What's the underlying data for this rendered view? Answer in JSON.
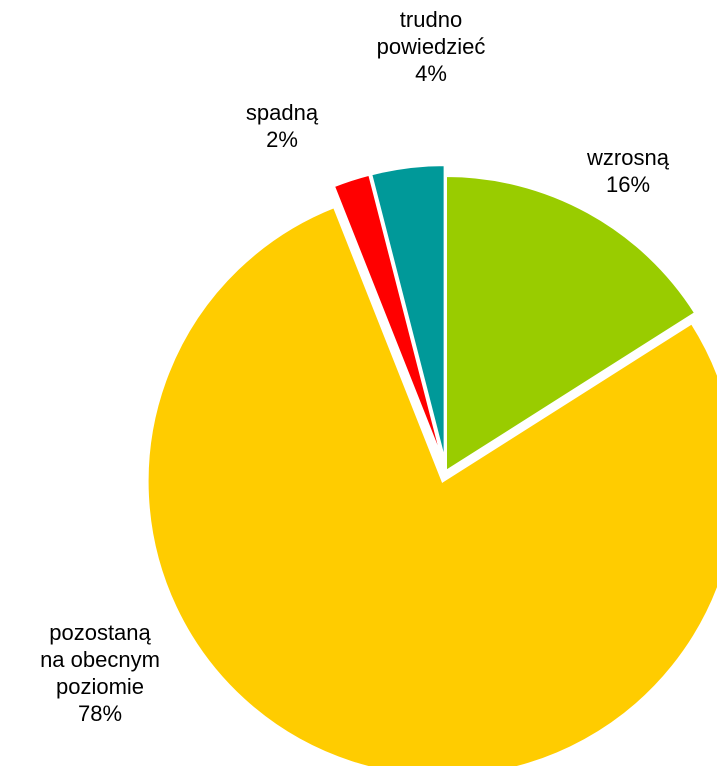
{
  "chart_data": {
    "type": "pie",
    "title": "",
    "start_angle_deg": 0,
    "direction": "clockwise",
    "legend": "none",
    "slices": [
      {
        "label_lines": [
          "wzrosną"
        ],
        "value": 16,
        "value_label": "16%",
        "color": "#99cc00",
        "exploded": false
      },
      {
        "label_lines": [
          "pozostaną",
          "na obecnym",
          "poziomie"
        ],
        "value": 78,
        "value_label": "78%",
        "color": "#ffcc00",
        "exploded": true
      },
      {
        "label_lines": [
          "spadną"
        ],
        "value": 2,
        "value_label": "2%",
        "color": "#ff0000",
        "exploded": true
      },
      {
        "label_lines": [
          "trudno",
          "powiedzieć"
        ],
        "value": 4,
        "value_label": "4%",
        "color": "#009999",
        "exploded": true
      }
    ]
  }
}
